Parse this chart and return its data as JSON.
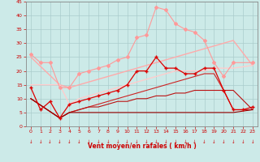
{
  "xlabel": "Vent moyen/en rafales ( km/h )",
  "xlim": [
    -0.5,
    23.5
  ],
  "ylim": [
    0,
    45
  ],
  "yticks": [
    0,
    5,
    10,
    15,
    20,
    25,
    30,
    35,
    40,
    45
  ],
  "xticks": [
    0,
    1,
    2,
    3,
    4,
    5,
    6,
    7,
    8,
    9,
    10,
    11,
    12,
    13,
    14,
    15,
    16,
    17,
    18,
    19,
    20,
    21,
    22,
    23
  ],
  "bg_color": "#cceae8",
  "grid_color": "#aacccc",
  "lines": [
    {
      "x": [
        0,
        1,
        2,
        3,
        4,
        5,
        6,
        7,
        8,
        9,
        10,
        11,
        12,
        13,
        14,
        15,
        16,
        17,
        18,
        19,
        20,
        21,
        23
      ],
      "y": [
        26,
        23,
        23,
        14,
        14,
        19,
        20,
        21,
        22,
        24,
        25,
        32,
        33,
        43,
        42,
        37,
        35,
        34,
        31,
        23,
        18,
        23,
        23
      ],
      "color": "#ff9999",
      "lw": 0.8,
      "marker": "D",
      "ms": 2.0
    },
    {
      "x": [
        0,
        3,
        4,
        5,
        6,
        7,
        8,
        9,
        10,
        11,
        12,
        13,
        14,
        15,
        16,
        17,
        18,
        19,
        20,
        21,
        23
      ],
      "y": [
        25,
        15,
        14,
        15,
        16,
        17,
        18,
        19,
        20,
        21,
        22,
        23,
        24,
        25,
        26,
        27,
        28,
        29,
        30,
        31,
        22
      ],
      "color": "#ffaaaa",
      "lw": 1.0,
      "marker": null,
      "ms": 0
    },
    {
      "x": [
        0,
        3,
        4,
        5,
        6,
        7,
        8,
        9,
        10,
        11,
        12,
        13,
        14,
        15,
        16,
        17,
        18,
        19,
        20,
        21,
        23
      ],
      "y": [
        15,
        15,
        8,
        10,
        11,
        12,
        13,
        14,
        15,
        16,
        17,
        18,
        19,
        20,
        20,
        20,
        20,
        21,
        21,
        21,
        22
      ],
      "color": "#ffcccc",
      "lw": 1.0,
      "marker": null,
      "ms": 0
    },
    {
      "x": [
        0,
        1,
        2,
        3,
        4,
        5,
        6,
        7,
        8,
        9,
        10,
        11,
        12,
        13,
        14,
        15,
        16,
        17,
        18,
        19,
        20,
        21,
        22,
        23
      ],
      "y": [
        14,
        6,
        9,
        3,
        8,
        9,
        10,
        11,
        12,
        13,
        15,
        20,
        20,
        25,
        21,
        21,
        19,
        19,
        21,
        21,
        13,
        6,
        6,
        7
      ],
      "color": "#dd0000",
      "lw": 0.9,
      "marker": "+",
      "ms": 3.0
    },
    {
      "x": [
        0,
        3,
        4,
        5,
        6,
        7,
        8,
        9,
        10,
        11,
        12,
        13,
        14,
        15,
        16,
        17,
        18,
        19,
        20,
        21,
        22,
        23
      ],
      "y": [
        10,
        3,
        5,
        6,
        7,
        8,
        9,
        10,
        11,
        12,
        13,
        14,
        15,
        16,
        17,
        18,
        19,
        19,
        13,
        6,
        6,
        6
      ],
      "color": "#cc2222",
      "lw": 0.8,
      "marker": null,
      "ms": 0
    },
    {
      "x": [
        0,
        3,
        4,
        5,
        6,
        7,
        8,
        9,
        10,
        11,
        12,
        13,
        14,
        15,
        16,
        17,
        18,
        19,
        20,
        21,
        23
      ],
      "y": [
        10,
        3,
        5,
        6,
        7,
        7,
        8,
        9,
        9,
        10,
        10,
        11,
        11,
        12,
        12,
        13,
        13,
        13,
        13,
        13,
        6
      ],
      "color": "#bb1111",
      "lw": 0.8,
      "marker": null,
      "ms": 0
    },
    {
      "x": [
        0,
        3,
        4,
        5,
        6,
        7,
        8,
        9,
        10,
        11,
        12,
        13,
        14,
        15,
        16,
        17,
        18,
        19,
        20,
        21,
        23
      ],
      "y": [
        10,
        3,
        5,
        5,
        5,
        5,
        5,
        5,
        5,
        5,
        5,
        5,
        5,
        5,
        5,
        5,
        5,
        5,
        5,
        5,
        6
      ],
      "color": "#990000",
      "lw": 0.8,
      "marker": null,
      "ms": 0
    }
  ]
}
